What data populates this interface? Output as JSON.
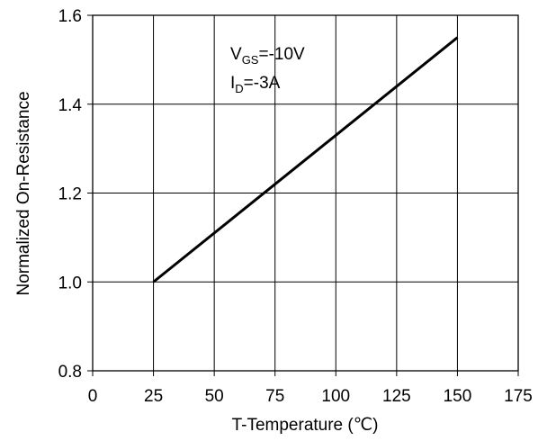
{
  "chart_data": {
    "type": "line",
    "xlabel": "T-Temperature (℃)",
    "ylabel": "Normalized On-Resistance",
    "xlim": [
      0,
      175
    ],
    "ylim": [
      0.8,
      1.6
    ],
    "xticks": [
      "0",
      "25",
      "50",
      "75",
      "100",
      "125",
      "150",
      "175"
    ],
    "yticks": [
      "0.8",
      "1.0",
      "1.2",
      "1.4",
      "1.6"
    ],
    "grid": true,
    "annotations": [
      {
        "main": "V",
        "sub": "GS",
        "rest": "=-10V"
      },
      {
        "main": "I",
        "sub": "D",
        "rest": "=-3A"
      }
    ],
    "series": [
      {
        "x": [
          25,
          150
        ],
        "y": [
          1.0,
          1.55
        ],
        "color": "#000000"
      }
    ]
  }
}
